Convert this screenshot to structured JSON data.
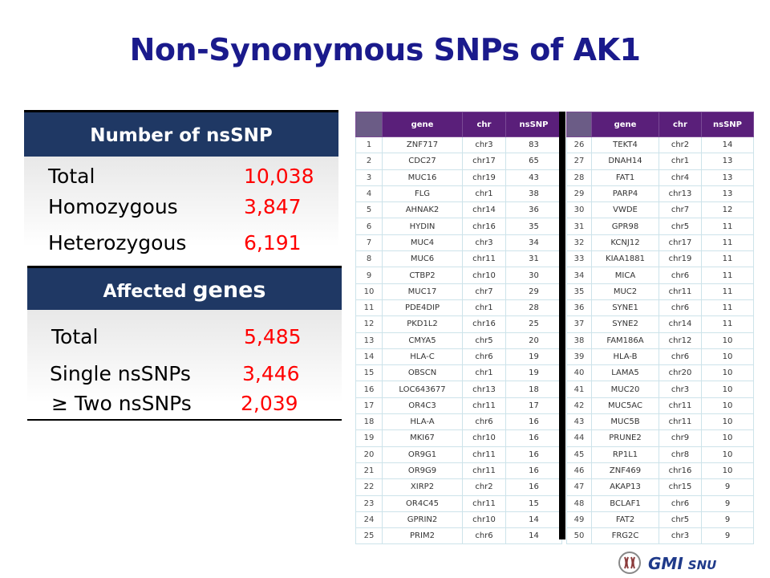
{
  "title": "Non-Synonymous SNPs of AK1",
  "nssnp_panel": {
    "header": "Number of nsSNP",
    "rows": [
      {
        "label": "Total",
        "value": "10,038"
      },
      {
        "label": "Homozygous",
        "value": "3,847"
      },
      {
        "label": "Heterozygous",
        "value": "6,191"
      }
    ]
  },
  "genes_panel": {
    "header_prefix": "Affected",
    "header_big": "genes",
    "rows": [
      {
        "label": "Total",
        "value": "5,485"
      },
      {
        "label": "Single nsSNPs",
        "value": "3,446"
      },
      {
        "label": "≥ Two nsSNPs",
        "value": "2,039"
      }
    ]
  },
  "table": {
    "columns": [
      "",
      "gene",
      "chr",
      "nsSNP"
    ],
    "left_rows": [
      [
        "1",
        "ZNF717",
        "chr3",
        "83"
      ],
      [
        "2",
        "CDC27",
        "chr17",
        "65"
      ],
      [
        "3",
        "MUC16",
        "chr19",
        "43"
      ],
      [
        "4",
        "FLG",
        "chr1",
        "38"
      ],
      [
        "5",
        "AHNAK2",
        "chr14",
        "36"
      ],
      [
        "6",
        "HYDIN",
        "chr16",
        "35"
      ],
      [
        "7",
        "MUC4",
        "chr3",
        "34"
      ],
      [
        "8",
        "MUC6",
        "chr11",
        "31"
      ],
      [
        "9",
        "CTBP2",
        "chr10",
        "30"
      ],
      [
        "10",
        "MUC17",
        "chr7",
        "29"
      ],
      [
        "11",
        "PDE4DIP",
        "chr1",
        "28"
      ],
      [
        "12",
        "PKD1L2",
        "chr16",
        "25"
      ],
      [
        "13",
        "CMYA5",
        "chr5",
        "20"
      ],
      [
        "14",
        "HLA-C",
        "chr6",
        "19"
      ],
      [
        "15",
        "OBSCN",
        "chr1",
        "19"
      ],
      [
        "16",
        "LOC643677",
        "chr13",
        "18"
      ],
      [
        "17",
        "OR4C3",
        "chr11",
        "17"
      ],
      [
        "18",
        "HLA-A",
        "chr6",
        "16"
      ],
      [
        "19",
        "MKI67",
        "chr10",
        "16"
      ],
      [
        "20",
        "OR9G1",
        "chr11",
        "16"
      ],
      [
        "21",
        "OR9G9",
        "chr11",
        "16"
      ],
      [
        "22",
        "XIRP2",
        "chr2",
        "16"
      ],
      [
        "23",
        "OR4C45",
        "chr11",
        "15"
      ],
      [
        "24",
        "GPRIN2",
        "chr10",
        "14"
      ],
      [
        "25",
        "PRIM2",
        "chr6",
        "14"
      ]
    ],
    "right_rows": [
      [
        "26",
        "TEKT4",
        "chr2",
        "14"
      ],
      [
        "27",
        "DNAH14",
        "chr1",
        "13"
      ],
      [
        "28",
        "FAT1",
        "chr4",
        "13"
      ],
      [
        "29",
        "PARP4",
        "chr13",
        "13"
      ],
      [
        "30",
        "VWDE",
        "chr7",
        "12"
      ],
      [
        "31",
        "GPR98",
        "chr5",
        "11"
      ],
      [
        "32",
        "KCNJ12",
        "chr17",
        "11"
      ],
      [
        "33",
        "KIAA1881",
        "chr19",
        "11"
      ],
      [
        "34",
        "MICA",
        "chr6",
        "11"
      ],
      [
        "35",
        "MUC2",
        "chr11",
        "11"
      ],
      [
        "36",
        "SYNE1",
        "chr6",
        "11"
      ],
      [
        "37",
        "SYNE2",
        "chr14",
        "11"
      ],
      [
        "38",
        "FAM186A",
        "chr12",
        "10"
      ],
      [
        "39",
        "HLA-B",
        "chr6",
        "10"
      ],
      [
        "40",
        "LAMA5",
        "chr20",
        "10"
      ],
      [
        "41",
        "MUC20",
        "chr3",
        "10"
      ],
      [
        "42",
        "MUC5AC",
        "chr11",
        "10"
      ],
      [
        "43",
        "MUC5B",
        "chr11",
        "10"
      ],
      [
        "44",
        "PRUNE2",
        "chr9",
        "10"
      ],
      [
        "45",
        "RP1L1",
        "chr8",
        "10"
      ],
      [
        "46",
        "ZNF469",
        "chr16",
        "10"
      ],
      [
        "47",
        "AKAP13",
        "chr15",
        "9"
      ],
      [
        "48",
        "BCLAF1",
        "chr6",
        "9"
      ],
      [
        "49",
        "FAT2",
        "chr5",
        "9"
      ],
      [
        "50",
        "FRG2C",
        "chr3",
        "9"
      ]
    ]
  },
  "logo": {
    "name": "GMI",
    "sub": "SNU",
    "icon": "chromosome-logo-icon"
  },
  "colors": {
    "title": "#1a1a8c",
    "panel_header": "#1f3864",
    "value": "#ff0000",
    "table_header": "#5a1f7a"
  }
}
